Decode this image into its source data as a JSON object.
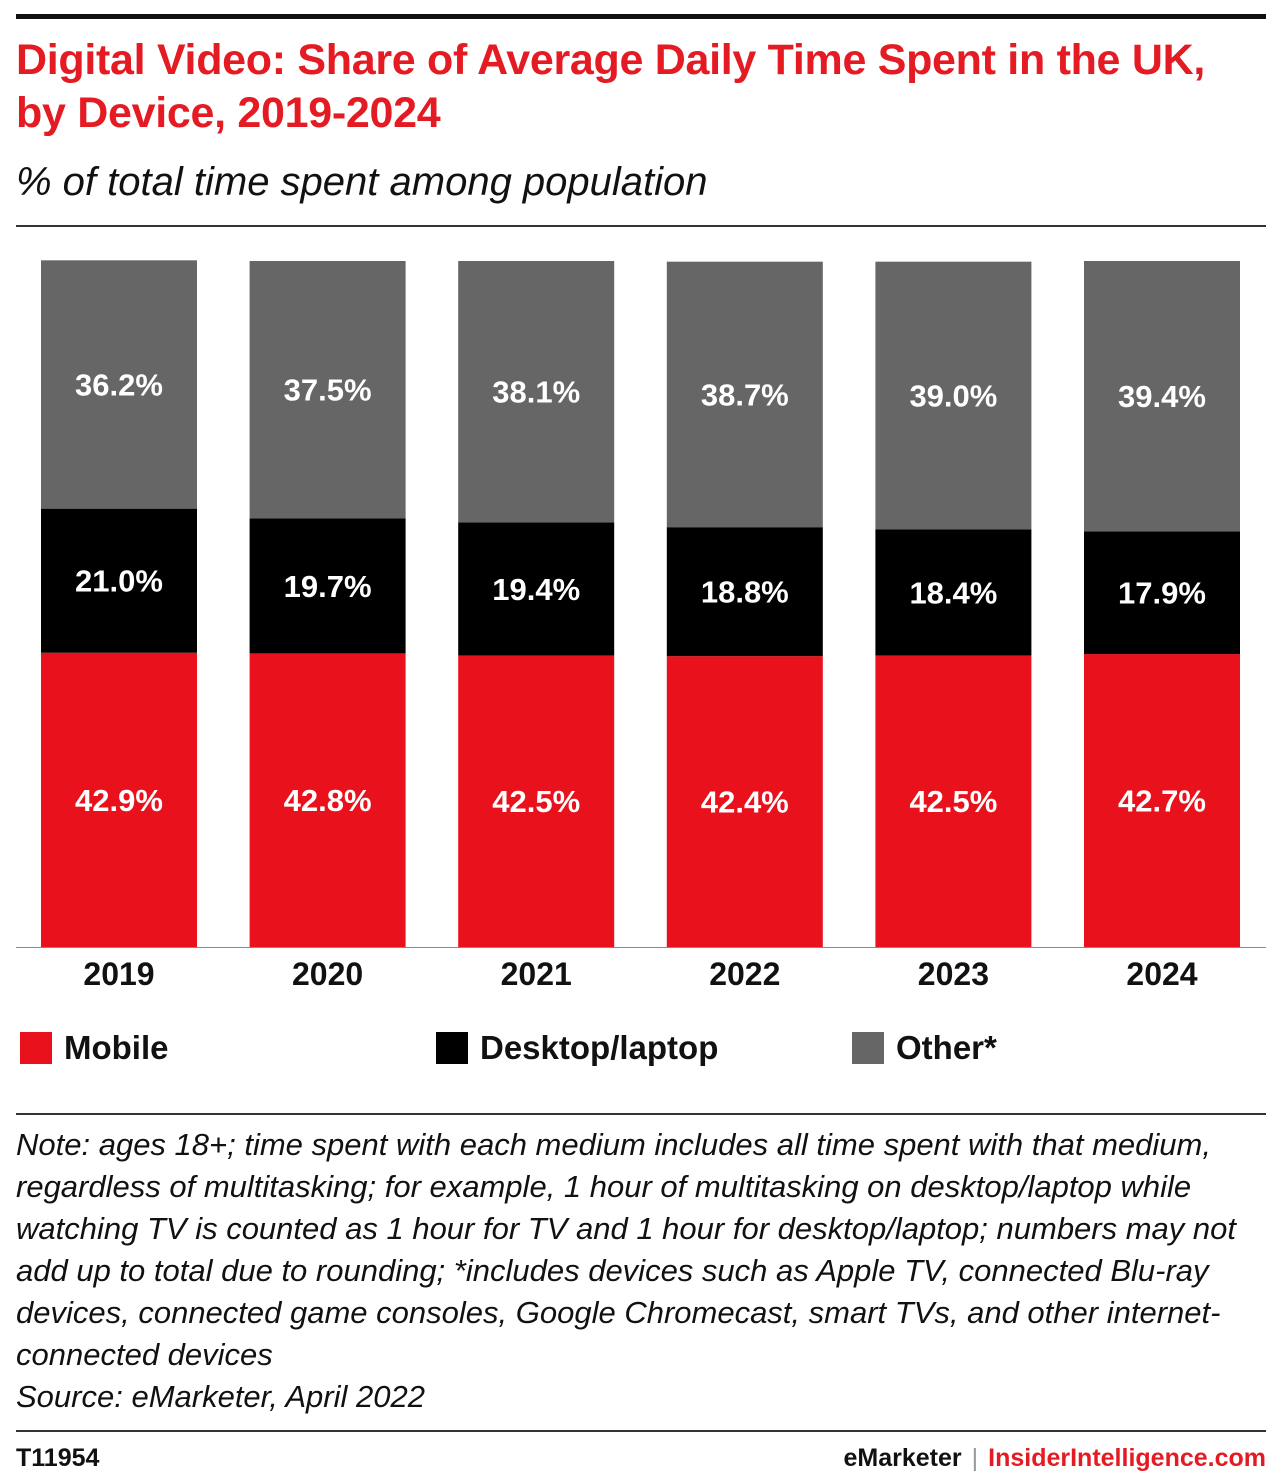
{
  "header": {
    "title": "Digital Video: Share of Average Daily Time Spent in the UK, by Device, 2019-2024",
    "subtitle": "% of total time spent among population"
  },
  "chart_data": {
    "type": "bar",
    "stacked": true,
    "categories": [
      "2019",
      "2020",
      "2021",
      "2022",
      "2023",
      "2024"
    ],
    "series": [
      {
        "name": "Mobile",
        "color": "#e8111c",
        "values": [
          42.9,
          42.8,
          42.5,
          42.4,
          42.5,
          42.7
        ],
        "labels": [
          "42.9%",
          "42.8%",
          "42.5%",
          "42.4%",
          "42.5%",
          "42.7%"
        ]
      },
      {
        "name": "Desktop/laptop",
        "color": "#000000",
        "values": [
          21.0,
          19.7,
          19.4,
          18.8,
          18.4,
          17.9
        ],
        "labels": [
          "21.0%",
          "19.7%",
          "19.4%",
          "18.8%",
          "18.4%",
          "17.9%"
        ]
      },
      {
        "name": "Other*",
        "color": "#666666",
        "values": [
          36.2,
          37.5,
          38.1,
          38.7,
          39.0,
          39.4
        ],
        "labels": [
          "36.2%",
          "37.5%",
          "38.1%",
          "38.7%",
          "39.0%",
          "39.4%"
        ]
      }
    ],
    "ylim": [
      0,
      100
    ],
    "legend_position": "bottom",
    "grid": false
  },
  "legend": [
    {
      "label": "Mobile",
      "color": "#e8111c"
    },
    {
      "label": "Desktop/laptop",
      "color": "#000000"
    },
    {
      "label": "Other*",
      "color": "#666666"
    }
  ],
  "note": "Note: ages 18+; time spent with each medium includes all time spent with that medium, regardless of multitasking; for example, 1 hour of multitasking on desktop/laptop while watching TV is counted as 1 hour for TV and 1 hour for desktop/laptop; numbers may not add up to total due to rounding; *includes devices such as Apple TV, connected Blu-ray devices, connected game consoles, Google Chromecast, smart TVs, and other internet-connected devices",
  "source": "Source: eMarketer, April 2022",
  "footer": {
    "chart_id": "T11954",
    "brand_left": "eMarketer",
    "separator": "|",
    "brand_right": "InsiderIntelligence.com"
  }
}
